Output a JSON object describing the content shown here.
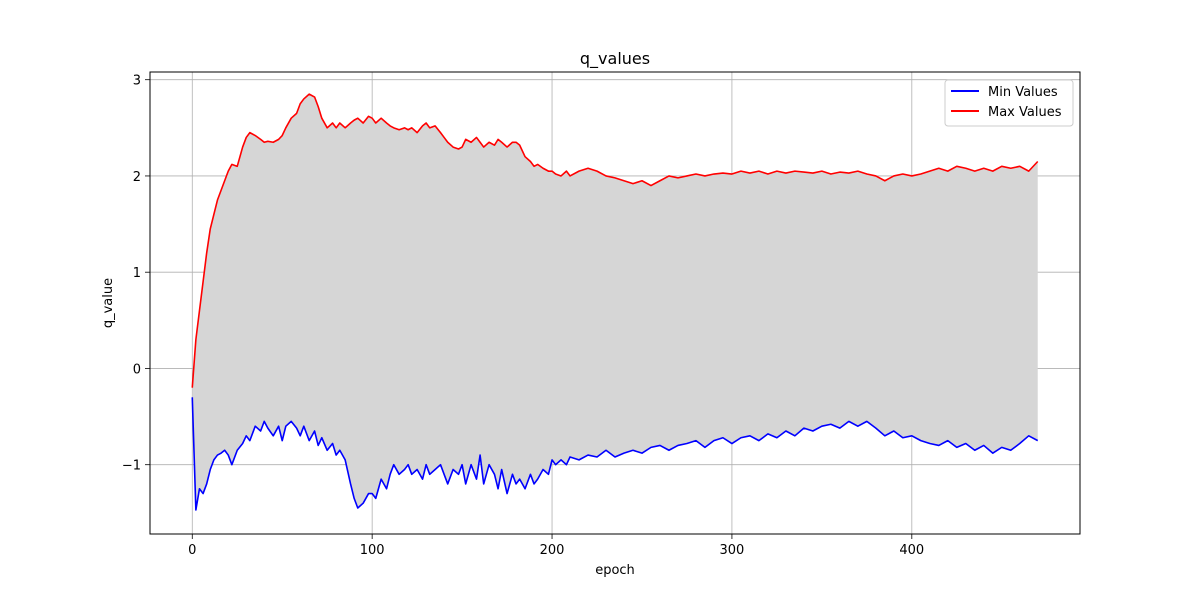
{
  "chart_data": {
    "type": "line",
    "title": "q_values",
    "xlabel": "epoch",
    "ylabel": "q_value",
    "xlim": [
      -23.5,
      493.5
    ],
    "ylim": [
      -1.72,
      3.08
    ],
    "xticks": [
      0,
      100,
      200,
      300,
      400
    ],
    "yticks": [
      -1,
      0,
      1,
      2,
      3
    ],
    "ytick_labels": [
      "−1",
      "0",
      "1",
      "2",
      "3"
    ],
    "grid": true,
    "legend_position": "top-right",
    "fill_between": {
      "lower": "Min Values",
      "upper": "Max Values",
      "color": "#d6d6d6"
    },
    "series": [
      {
        "name": "Min Values",
        "color": "#0000ff",
        "x": [
          0,
          2,
          4,
          6,
          8,
          10,
          12,
          14,
          16,
          18,
          20,
          22,
          25,
          28,
          30,
          32,
          35,
          38,
          40,
          42,
          45,
          48,
          50,
          52,
          55,
          58,
          60,
          62,
          65,
          68,
          70,
          72,
          75,
          78,
          80,
          82,
          85,
          88,
          90,
          92,
          95,
          98,
          100,
          102,
          105,
          108,
          110,
          112,
          115,
          118,
          120,
          122,
          125,
          128,
          130,
          132,
          135,
          138,
          140,
          142,
          145,
          148,
          150,
          152,
          155,
          158,
          160,
          162,
          165,
          168,
          170,
          172,
          175,
          178,
          180,
          182,
          185,
          188,
          190,
          192,
          195,
          198,
          200,
          202,
          205,
          208,
          210,
          215,
          220,
          225,
          230,
          235,
          240,
          245,
          250,
          255,
          260,
          265,
          270,
          275,
          280,
          285,
          290,
          295,
          300,
          305,
          310,
          315,
          320,
          325,
          330,
          335,
          340,
          345,
          350,
          355,
          360,
          365,
          370,
          375,
          380,
          385,
          390,
          395,
          400,
          405,
          410,
          415,
          420,
          425,
          430,
          435,
          440,
          445,
          450,
          455,
          460,
          465,
          470
        ],
        "values": [
          -0.3,
          -1.47,
          -1.25,
          -1.3,
          -1.2,
          -1.05,
          -0.95,
          -0.9,
          -0.88,
          -0.85,
          -0.9,
          -1.0,
          -0.85,
          -0.78,
          -0.7,
          -0.75,
          -0.6,
          -0.65,
          -0.55,
          -0.62,
          -0.7,
          -0.6,
          -0.75,
          -0.6,
          -0.55,
          -0.62,
          -0.7,
          -0.6,
          -0.75,
          -0.65,
          -0.8,
          -0.72,
          -0.85,
          -0.78,
          -0.9,
          -0.85,
          -0.95,
          -1.2,
          -1.35,
          -1.45,
          -1.4,
          -1.3,
          -1.3,
          -1.35,
          -1.15,
          -1.25,
          -1.1,
          -1.0,
          -1.1,
          -1.05,
          -1.0,
          -1.1,
          -1.05,
          -1.15,
          -1.0,
          -1.1,
          -1.05,
          -1.0,
          -1.1,
          -1.2,
          -1.05,
          -1.1,
          -1.0,
          -1.2,
          -1.0,
          -1.15,
          -0.9,
          -1.2,
          -1.0,
          -1.1,
          -1.25,
          -1.05,
          -1.3,
          -1.1,
          -1.2,
          -1.15,
          -1.25,
          -1.1,
          -1.2,
          -1.15,
          -1.05,
          -1.1,
          -0.95,
          -1.0,
          -0.95,
          -1.0,
          -0.92,
          -0.95,
          -0.9,
          -0.92,
          -0.85,
          -0.92,
          -0.88,
          -0.85,
          -0.88,
          -0.82,
          -0.8,
          -0.85,
          -0.8,
          -0.78,
          -0.75,
          -0.82,
          -0.75,
          -0.72,
          -0.78,
          -0.72,
          -0.7,
          -0.75,
          -0.68,
          -0.72,
          -0.65,
          -0.7,
          -0.62,
          -0.65,
          -0.6,
          -0.58,
          -0.62,
          -0.55,
          -0.6,
          -0.55,
          -0.62,
          -0.7,
          -0.65,
          -0.72,
          -0.7,
          -0.75,
          -0.78,
          -0.8,
          -0.75,
          -0.82,
          -0.78,
          -0.85,
          -0.8,
          -0.88,
          -0.82,
          -0.85,
          -0.78,
          -0.7,
          -0.75
        ]
      },
      {
        "name": "Max Values",
        "color": "#ff0000",
        "x": [
          0,
          2,
          4,
          6,
          8,
          10,
          12,
          14,
          16,
          18,
          20,
          22,
          25,
          28,
          30,
          32,
          35,
          38,
          40,
          42,
          45,
          48,
          50,
          52,
          55,
          58,
          60,
          62,
          65,
          68,
          70,
          72,
          75,
          78,
          80,
          82,
          85,
          88,
          90,
          92,
          95,
          98,
          100,
          102,
          105,
          108,
          110,
          112,
          115,
          118,
          120,
          122,
          125,
          128,
          130,
          132,
          135,
          138,
          140,
          142,
          145,
          148,
          150,
          152,
          155,
          158,
          160,
          162,
          165,
          168,
          170,
          172,
          175,
          178,
          180,
          182,
          185,
          188,
          190,
          192,
          195,
          198,
          200,
          202,
          205,
          208,
          210,
          215,
          220,
          225,
          230,
          235,
          240,
          245,
          250,
          255,
          260,
          265,
          270,
          275,
          280,
          285,
          290,
          295,
          300,
          305,
          310,
          315,
          320,
          325,
          330,
          335,
          340,
          345,
          350,
          355,
          360,
          365,
          370,
          375,
          380,
          385,
          390,
          395,
          400,
          405,
          410,
          415,
          420,
          425,
          430,
          435,
          440,
          445,
          450,
          455,
          460,
          465,
          470
        ],
        "values": [
          -0.2,
          0.3,
          0.6,
          0.9,
          1.2,
          1.45,
          1.6,
          1.75,
          1.85,
          1.95,
          2.05,
          2.12,
          2.1,
          2.3,
          2.4,
          2.45,
          2.42,
          2.38,
          2.35,
          2.36,
          2.35,
          2.38,
          2.42,
          2.5,
          2.6,
          2.65,
          2.75,
          2.8,
          2.85,
          2.82,
          2.72,
          2.6,
          2.5,
          2.55,
          2.5,
          2.55,
          2.5,
          2.55,
          2.58,
          2.6,
          2.55,
          2.62,
          2.6,
          2.55,
          2.6,
          2.55,
          2.52,
          2.5,
          2.48,
          2.5,
          2.48,
          2.5,
          2.45,
          2.52,
          2.55,
          2.5,
          2.52,
          2.45,
          2.4,
          2.35,
          2.3,
          2.28,
          2.3,
          2.38,
          2.35,
          2.4,
          2.35,
          2.3,
          2.35,
          2.32,
          2.38,
          2.35,
          2.3,
          2.35,
          2.35,
          2.32,
          2.2,
          2.15,
          2.1,
          2.12,
          2.08,
          2.05,
          2.05,
          2.02,
          2.0,
          2.05,
          2.0,
          2.05,
          2.08,
          2.05,
          2.0,
          1.98,
          1.95,
          1.92,
          1.95,
          1.9,
          1.95,
          2.0,
          1.98,
          2.0,
          2.02,
          2.0,
          2.02,
          2.03,
          2.02,
          2.05,
          2.03,
          2.05,
          2.02,
          2.05,
          2.03,
          2.05,
          2.04,
          2.03,
          2.05,
          2.02,
          2.04,
          2.03,
          2.05,
          2.02,
          2.0,
          1.95,
          2.0,
          2.02,
          2.0,
          2.02,
          2.05,
          2.08,
          2.05,
          2.1,
          2.08,
          2.05,
          2.08,
          2.05,
          2.1,
          2.08,
          2.1,
          2.05,
          2.15
        ]
      }
    ]
  }
}
